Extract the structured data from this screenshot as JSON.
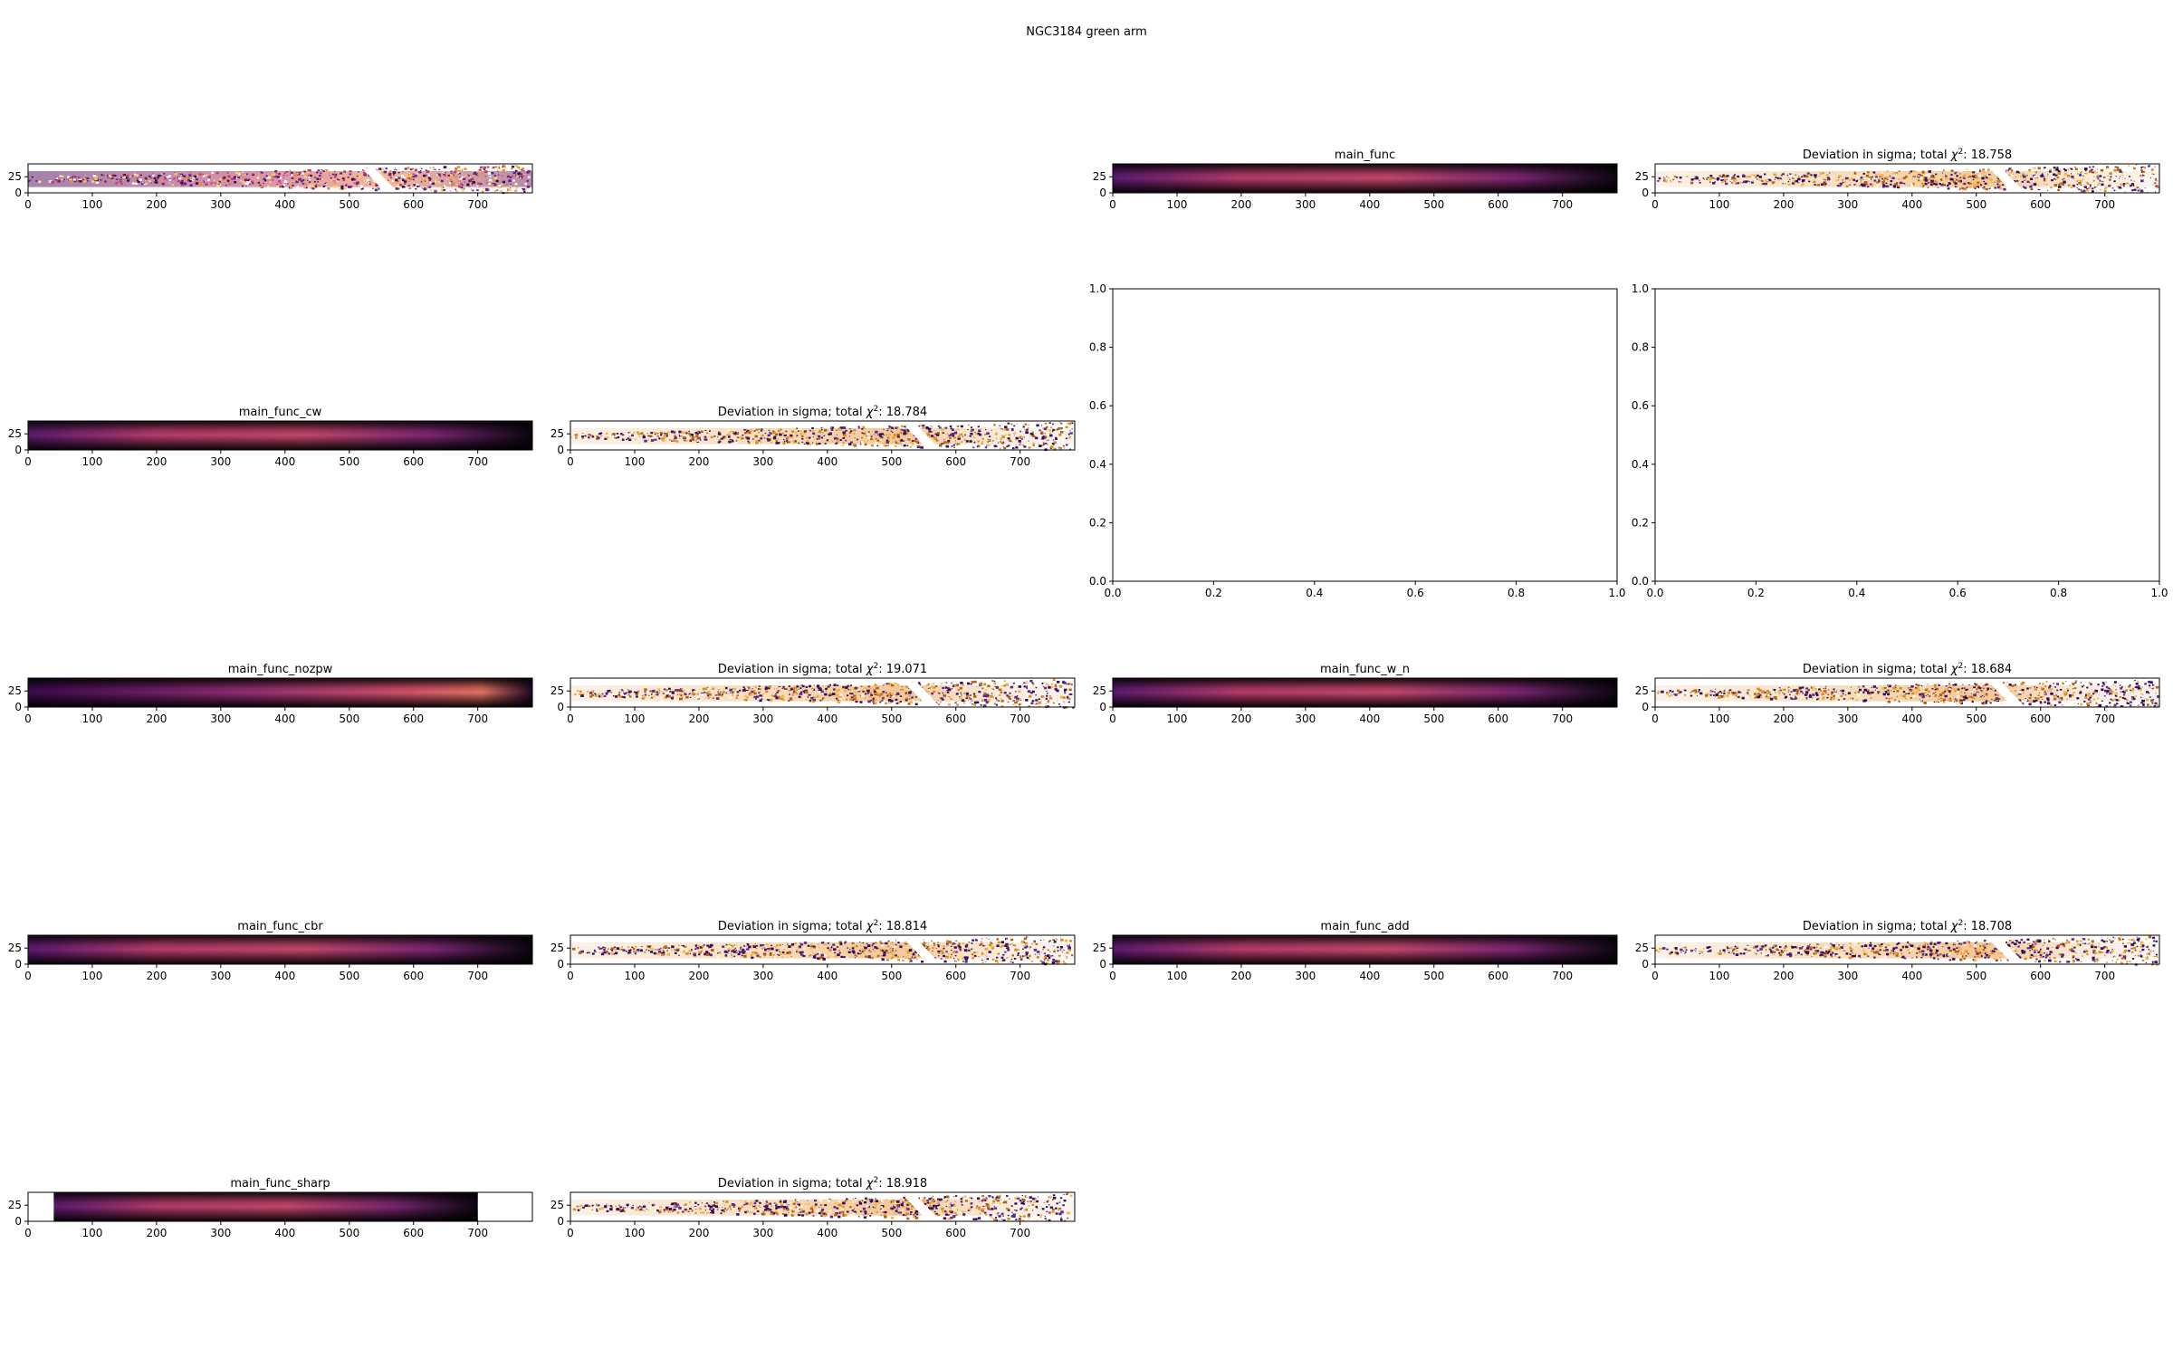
{
  "figure": {
    "suptitle": "NGC3184 green arm"
  },
  "chart_data": [
    {
      "type": "heatmap",
      "title": "",
      "colormap": "inferno-residual",
      "variant": "data",
      "xticks": [
        0,
        100,
        200,
        300,
        400,
        500,
        600,
        700
      ],
      "yticks": [
        0,
        25
      ],
      "xlim": [
        0,
        785
      ],
      "ylim": [
        0,
        45
      ]
    },
    {
      "type": "heatmap",
      "title": "main_func",
      "colormap": "inferno",
      "variant": "model",
      "xticks": [
        0,
        100,
        200,
        300,
        400,
        500,
        600,
        700
      ],
      "yticks": [
        0,
        25
      ],
      "xlim": [
        0,
        785
      ],
      "ylim": [
        0,
        45
      ]
    },
    {
      "type": "heatmap",
      "title": "Deviation in sigma; total",
      "chi2": "18.758",
      "colormap": "puor-residual",
      "variant": "residual",
      "xticks": [
        0,
        100,
        200,
        300,
        400,
        500,
        600,
        700
      ],
      "yticks": [
        0,
        25
      ],
      "xlim": [
        0,
        785
      ],
      "ylim": [
        0,
        45
      ]
    },
    {
      "type": "heatmap",
      "title": "main_func_cw",
      "colormap": "inferno",
      "variant": "model",
      "xticks": [
        0,
        100,
        200,
        300,
        400,
        500,
        600,
        700
      ],
      "yticks": [
        0,
        25
      ],
      "xlim": [
        0,
        785
      ],
      "ylim": [
        0,
        45
      ]
    },
    {
      "type": "heatmap",
      "title": "Deviation in sigma; total",
      "chi2": "18.784",
      "colormap": "puor-residual",
      "variant": "residual",
      "xticks": [
        0,
        100,
        200,
        300,
        400,
        500,
        600,
        700
      ],
      "yticks": [
        0,
        25
      ],
      "xlim": [
        0,
        785
      ],
      "ylim": [
        0,
        45
      ]
    },
    {
      "type": "line",
      "title": "",
      "empty": true,
      "xlim": [
        0,
        1
      ],
      "ylim": [
        0,
        1
      ],
      "xticks": [
        "0.0",
        "0.2",
        "0.4",
        "0.6",
        "0.8",
        "1.0"
      ],
      "yticks": [
        "0.0",
        "0.2",
        "0.4",
        "0.6",
        "0.8",
        "1.0"
      ]
    },
    {
      "type": "line",
      "title": "",
      "empty": true,
      "xlim": [
        0,
        1
      ],
      "ylim": [
        0,
        1
      ],
      "xticks": [
        "0.0",
        "0.2",
        "0.4",
        "0.6",
        "0.8",
        "1.0"
      ],
      "yticks": [
        "0.0",
        "0.2",
        "0.4",
        "0.6",
        "0.8",
        "1.0"
      ]
    },
    {
      "type": "heatmap",
      "title": "main_func_nozpw",
      "colormap": "inferno",
      "variant": "model",
      "xticks": [
        0,
        100,
        200,
        300,
        400,
        500,
        600,
        700
      ],
      "yticks": [
        0,
        25
      ],
      "xlim": [
        0,
        785
      ],
      "ylim": [
        0,
        45
      ]
    },
    {
      "type": "heatmap",
      "title": "Deviation in sigma; total",
      "chi2": "19.071",
      "colormap": "puor-residual",
      "variant": "residual",
      "xticks": [
        0,
        100,
        200,
        300,
        400,
        500,
        600,
        700
      ],
      "yticks": [
        0,
        25
      ],
      "xlim": [
        0,
        785
      ],
      "ylim": [
        0,
        45
      ]
    },
    {
      "type": "heatmap",
      "title": "main_func_w_n",
      "colormap": "inferno",
      "variant": "model",
      "xticks": [
        0,
        100,
        200,
        300,
        400,
        500,
        600,
        700
      ],
      "yticks": [
        0,
        25
      ],
      "xlim": [
        0,
        785
      ],
      "ylim": [
        0,
        45
      ]
    },
    {
      "type": "heatmap",
      "title": "Deviation in sigma; total",
      "chi2": "18.684",
      "colormap": "puor-residual",
      "variant": "residual",
      "xticks": [
        0,
        100,
        200,
        300,
        400,
        500,
        600,
        700
      ],
      "yticks": [
        0,
        25
      ],
      "xlim": [
        0,
        785
      ],
      "ylim": [
        0,
        45
      ]
    },
    {
      "type": "heatmap",
      "title": "main_func_cbr",
      "colormap": "inferno",
      "variant": "model",
      "xticks": [
        0,
        100,
        200,
        300,
        400,
        500,
        600,
        700
      ],
      "yticks": [
        0,
        25
      ],
      "xlim": [
        0,
        785
      ],
      "ylim": [
        0,
        45
      ]
    },
    {
      "type": "heatmap",
      "title": "Deviation in sigma; total",
      "chi2": "18.814",
      "colormap": "puor-residual",
      "variant": "residual",
      "xticks": [
        0,
        100,
        200,
        300,
        400,
        500,
        600,
        700
      ],
      "yticks": [
        0,
        25
      ],
      "xlim": [
        0,
        785
      ],
      "ylim": [
        0,
        45
      ]
    },
    {
      "type": "heatmap",
      "title": "main_func_add",
      "colormap": "inferno",
      "variant": "model",
      "xticks": [
        0,
        100,
        200,
        300,
        400,
        500,
        600,
        700
      ],
      "yticks": [
        0,
        25
      ],
      "xlim": [
        0,
        785
      ],
      "ylim": [
        0,
        45
      ]
    },
    {
      "type": "heatmap",
      "title": "Deviation in sigma; total",
      "chi2": "18.708",
      "colormap": "puor-residual",
      "variant": "residual",
      "xticks": [
        0,
        100,
        200,
        300,
        400,
        500,
        600,
        700
      ],
      "yticks": [
        0,
        25
      ],
      "xlim": [
        0,
        785
      ],
      "ylim": [
        0,
        45
      ]
    },
    {
      "type": "heatmap",
      "title": "main_func_sharp",
      "colormap": "inferno",
      "variant": "model",
      "data_x_range": [
        40,
        700
      ],
      "xticks": [
        0,
        100,
        200,
        300,
        400,
        500,
        600,
        700
      ],
      "yticks": [
        0,
        25
      ],
      "xlim": [
        0,
        785
      ],
      "ylim": [
        0,
        45
      ]
    },
    {
      "type": "heatmap",
      "title": "Deviation in sigma; total",
      "chi2": "18.918",
      "colormap": "puor-residual",
      "variant": "residual",
      "xticks": [
        0,
        100,
        200,
        300,
        400,
        500,
        600,
        700
      ],
      "yticks": [
        0,
        25
      ],
      "xlim": [
        0,
        785
      ],
      "ylim": [
        0,
        45
      ]
    }
  ]
}
